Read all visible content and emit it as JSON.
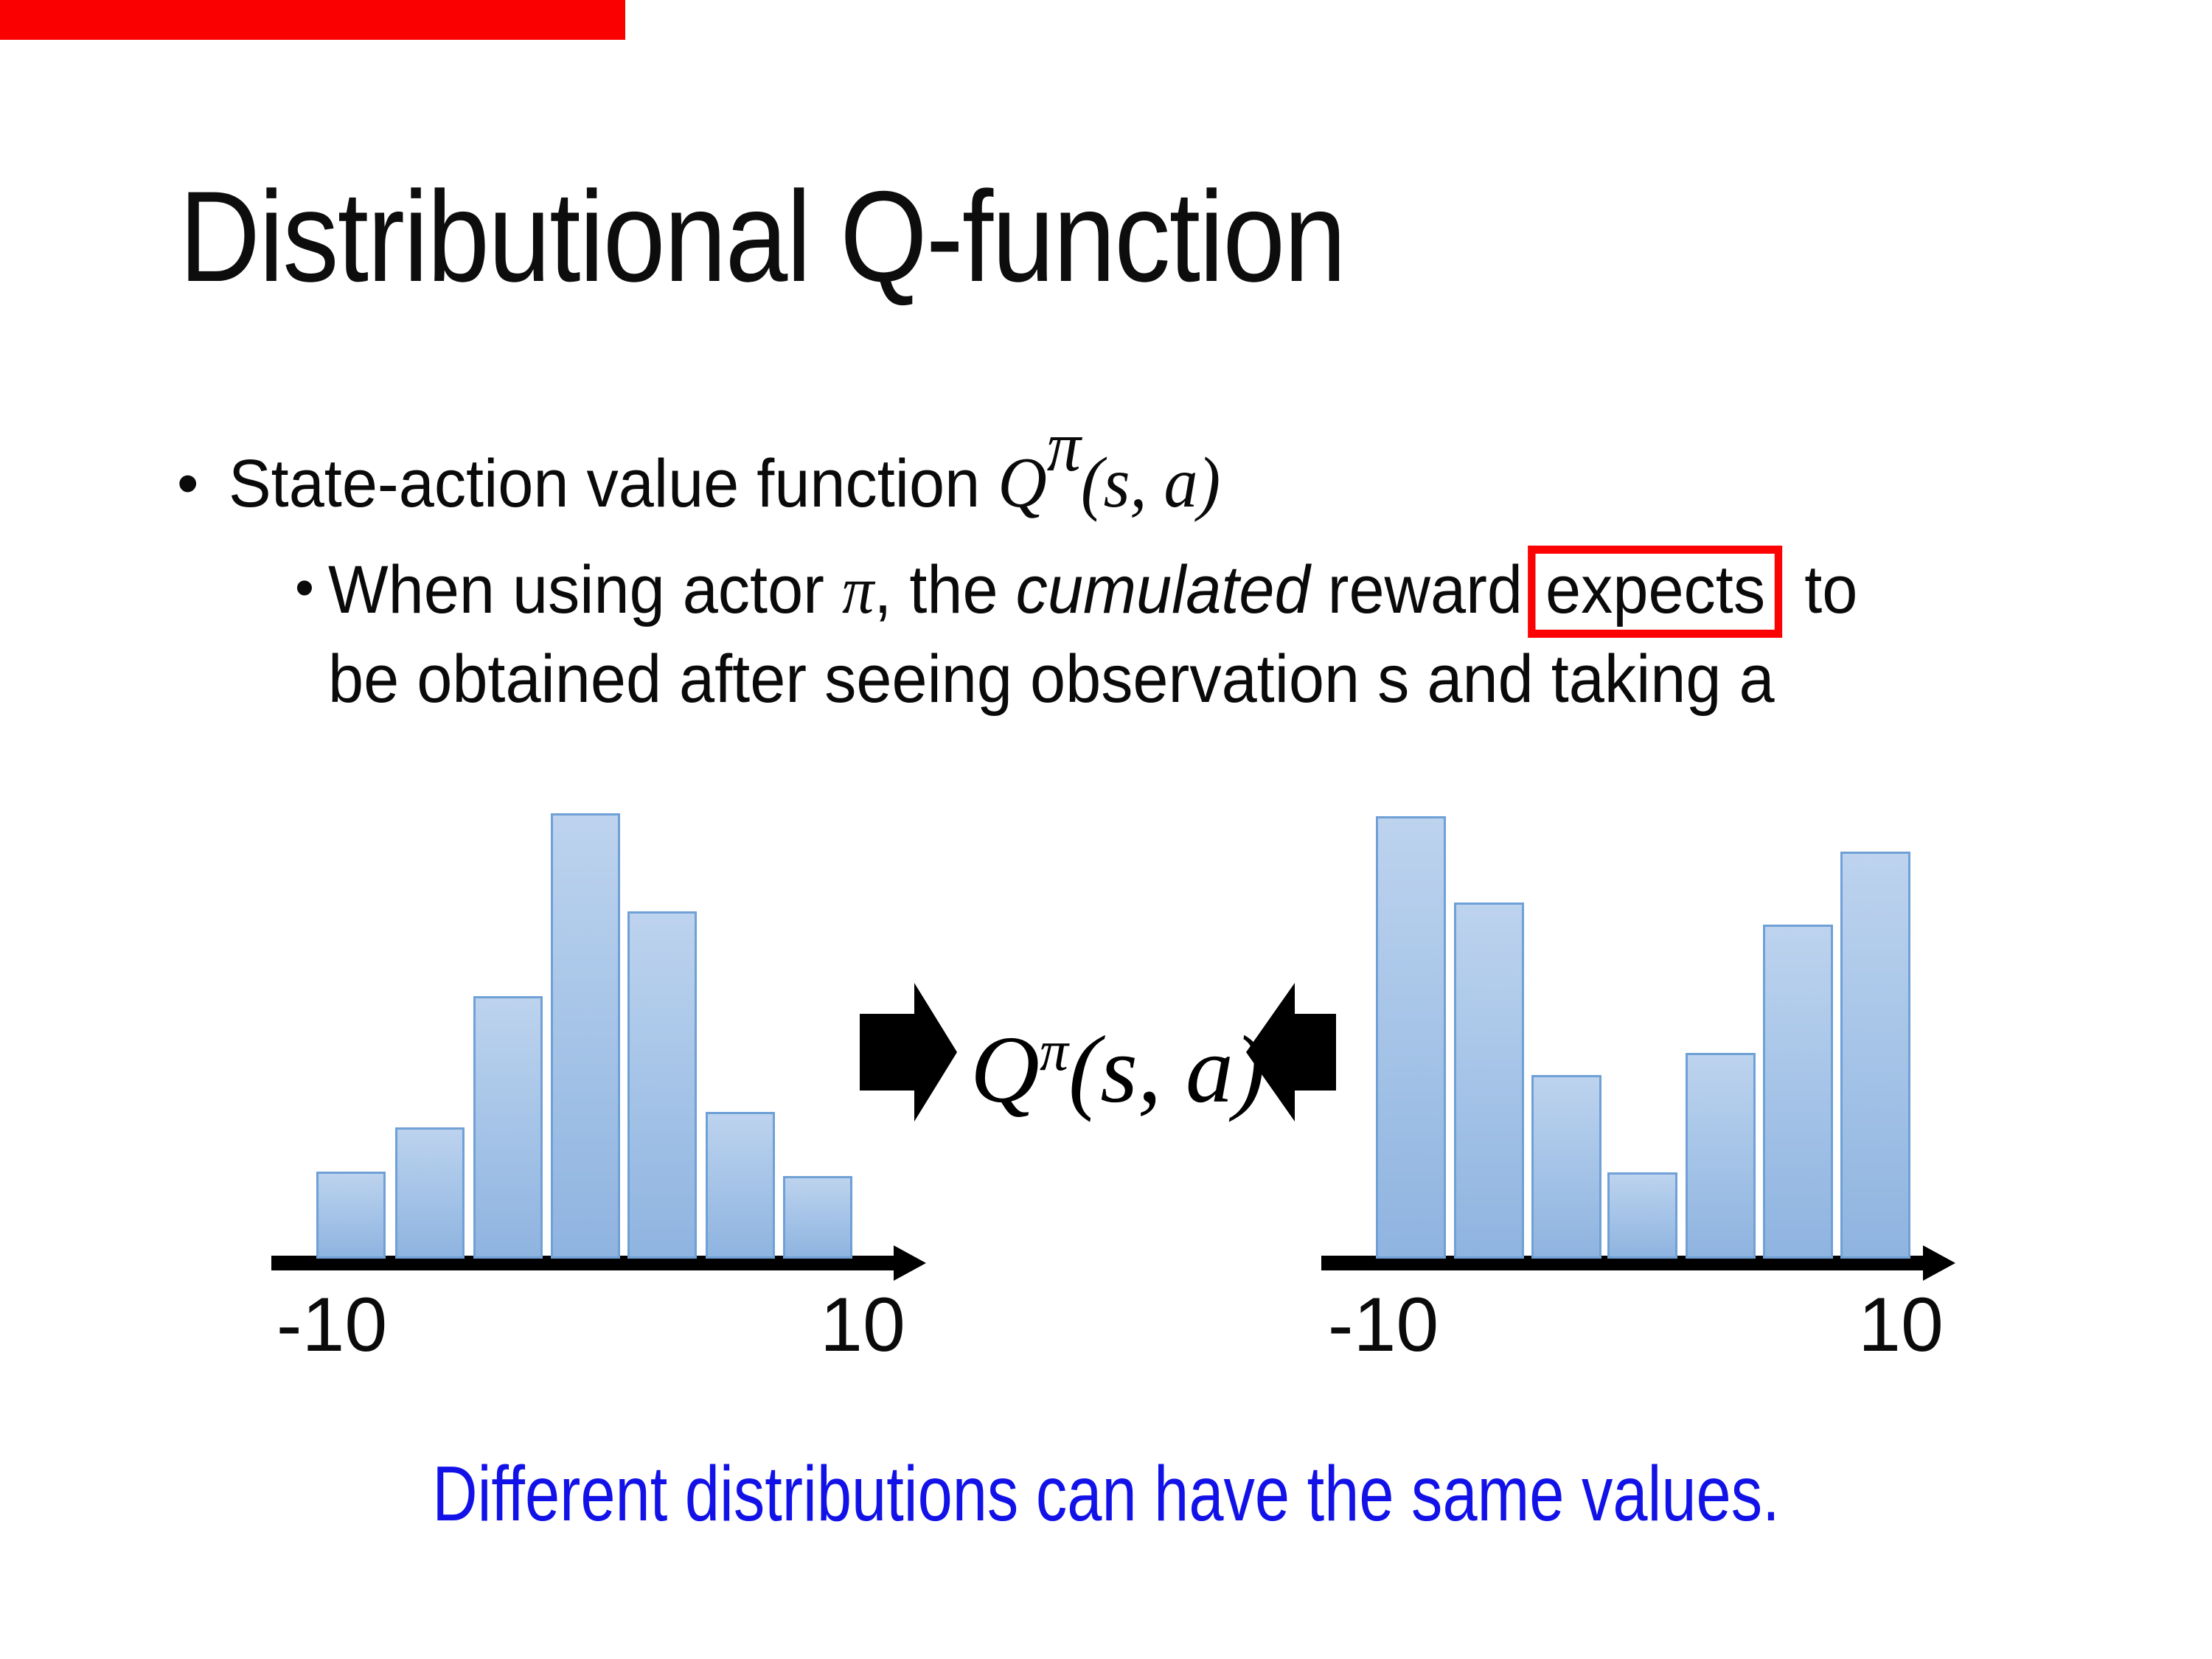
{
  "slide": {
    "title": "Distributional Q-function"
  },
  "bullets": {
    "dot": "•",
    "b1_text": "State-action value function ",
    "b2_t1": "When using actor ",
    "b2_pi": "π",
    "b2_t2": ", the ",
    "b2_cumulated": "cumulated",
    "b2_t3": " reward",
    "b2_expects": "expects",
    "b2_t4": " to",
    "b2_line2": "be obtained after seeing observation s and taking a"
  },
  "formula": {
    "q": "Q",
    "sup": "π",
    "args": "(s, a)"
  },
  "caption": {
    "text": "Different distributions can have the same values.",
    "color": "#1212e8"
  },
  "colors": {
    "highlight_red": "#fd0202",
    "top_bar_red": "#fb0000",
    "bar_fill_top": "#bdd3ee",
    "bar_fill_bottom": "#8fb4e0",
    "bar_border": "#6fa0d6",
    "axis_black": "#000000"
  },
  "chart_data": [
    {
      "type": "bar",
      "name": "left-distribution",
      "shape": "unimodal bell-like histogram",
      "x_ticks": [
        "-10",
        "10"
      ],
      "xlim": [
        -10,
        10
      ],
      "values": [
        1.95,
        2.95,
        5.9,
        10,
        7.8,
        3.3,
        1.85
      ],
      "value_note": "relative bar heights, tallest = 10",
      "grid": false,
      "legend": false
    },
    {
      "type": "bar",
      "name": "right-distribution",
      "shape": "bimodal U-shaped histogram",
      "x_ticks": [
        "-10",
        "10"
      ],
      "xlim": [
        -10,
        10
      ],
      "values": [
        10,
        8.05,
        4.15,
        1.95,
        4.65,
        7.55,
        9.2
      ],
      "value_note": "relative bar heights, tallest = 10",
      "grid": false,
      "legend": false
    }
  ]
}
